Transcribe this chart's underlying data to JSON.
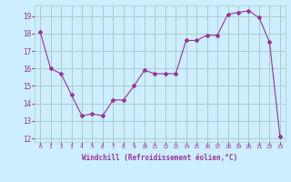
{
  "x": [
    0,
    1,
    2,
    3,
    4,
    5,
    6,
    7,
    8,
    9,
    10,
    11,
    12,
    13,
    14,
    15,
    16,
    17,
    18,
    19,
    20,
    21,
    22,
    23
  ],
  "y": [
    18.1,
    16.0,
    15.7,
    14.5,
    13.3,
    13.4,
    13.3,
    14.2,
    14.2,
    15.0,
    15.9,
    15.7,
    15.7,
    15.7,
    17.6,
    17.6,
    17.9,
    17.9,
    19.1,
    19.2,
    19.3,
    18.9,
    17.5,
    12.1
  ],
  "line_color": "#993399",
  "marker": "D",
  "marker_size": 2,
  "bg_color": "#cceeff",
  "grid_color": "#aacccc",
  "xlabel": "Windchill (Refroidissement éolien,°C)",
  "xlabel_color": "#993399",
  "tick_color": "#993399",
  "ylim": [
    11.8,
    19.6
  ],
  "yticks": [
    12,
    13,
    14,
    15,
    16,
    17,
    18,
    19
  ],
  "xticks": [
    0,
    1,
    2,
    3,
    4,
    5,
    6,
    7,
    8,
    9,
    10,
    11,
    12,
    13,
    14,
    15,
    16,
    17,
    18,
    19,
    20,
    21,
    22,
    23
  ],
  "xtick_labels": [
    "0",
    "1",
    "2",
    "3",
    "4",
    "5",
    "6",
    "7",
    "8",
    "9",
    "10",
    "11",
    "12",
    "13",
    "14",
    "15",
    "16",
    "17",
    "18",
    "19",
    "20",
    "21",
    "22",
    "23"
  ]
}
